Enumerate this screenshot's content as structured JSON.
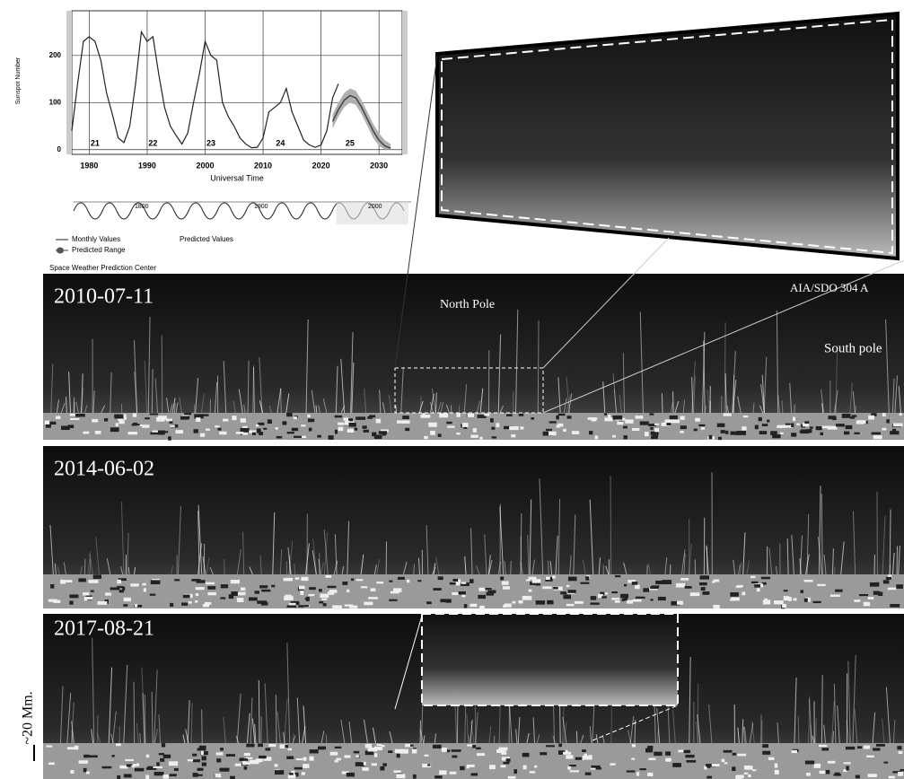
{
  "chart_data": {
    "type": "line",
    "y_label": "Sunspot Number",
    "x_label": "Universal Time",
    "xlim": [
      1977,
      2034
    ],
    "ylim": [
      -10,
      295
    ],
    "xticks": [
      1980,
      1990,
      2000,
      2010,
      2020,
      2030
    ],
    "yticks": [
      0,
      100,
      200
    ],
    "grid": true,
    "series": [
      {
        "name": "Monthly Values",
        "color": "#222222",
        "x": [
          1977,
          1978,
          1979,
          1980,
          1981,
          1982,
          1983,
          1984,
          1985,
          1986,
          1987,
          1988,
          1989,
          1990,
          1991,
          1992,
          1993,
          1994,
          1995,
          1996,
          1997,
          1998,
          1999,
          2000,
          2001,
          2002,
          2003,
          2004,
          2005,
          2006,
          2007,
          2008,
          2009,
          2010,
          2011,
          2012,
          2013,
          2014,
          2015,
          2016,
          2017,
          2018,
          2019,
          2020,
          2021,
          2022,
          2023
        ],
        "values": [
          40,
          140,
          230,
          240,
          230,
          190,
          120,
          75,
          25,
          15,
          50,
          140,
          250,
          230,
          240,
          160,
          90,
          50,
          30,
          12,
          35,
          100,
          160,
          230,
          200,
          190,
          100,
          70,
          50,
          25,
          12,
          4,
          5,
          25,
          80,
          90,
          100,
          130,
          80,
          50,
          20,
          10,
          5,
          10,
          40,
          110,
          140
        ]
      },
      {
        "name": "Predicted Values",
        "color": "#444444",
        "x": [
          2022,
          2023,
          2024,
          2025,
          2026,
          2027,
          2028,
          2029,
          2030,
          2031,
          2032
        ],
        "values": [
          60,
          85,
          105,
          115,
          110,
          90,
          65,
          40,
          20,
          8,
          3
        ]
      },
      {
        "name": "Predicted Range",
        "color": "#b0b0b0",
        "x": [
          2022,
          2023,
          2024,
          2025,
          2026,
          2027,
          2028,
          2029,
          2030,
          2031,
          2032
        ],
        "high": [
          75,
          100,
          120,
          130,
          125,
          105,
          80,
          55,
          35,
          20,
          12
        ],
        "low": [
          45,
          70,
          90,
          100,
          95,
          75,
          50,
          25,
          8,
          0,
          0
        ]
      }
    ],
    "annotations": [
      {
        "text": "21",
        "x": 1981
      },
      {
        "text": "22",
        "x": 1991
      },
      {
        "text": "23",
        "x": 2001
      },
      {
        "text": "24",
        "x": 2013
      },
      {
        "text": "25",
        "x": 2025
      }
    ],
    "overview_labels": [
      "1800",
      "1900",
      "2000"
    ],
    "source": "Space Weather Prediction Center"
  },
  "panels": [
    {
      "date": "2010-07-11",
      "labels": [
        "North Pole",
        "AIA/SDO 304 A",
        "South pole"
      ]
    },
    {
      "date": "2014-06-02"
    },
    {
      "date": "2017-08-21"
    }
  ],
  "scale_label": "~20 Mm."
}
